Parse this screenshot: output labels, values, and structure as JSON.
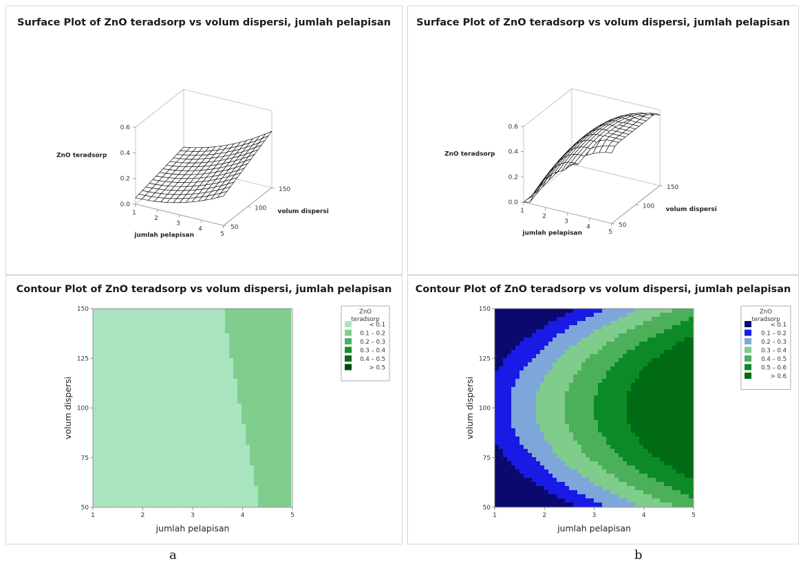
{
  "captions": [
    "a",
    "b"
  ],
  "chart_data": [
    {
      "type": "surface",
      "title": "Surface Plot of ZnO teradsorp vs volum dispersi, jumlah pelapisan",
      "xlabel": "jumlah pelapisan",
      "ylabel": "volum dispersi",
      "zlabel": "ZnO teradsorp",
      "x_ticks": [
        "1",
        "2",
        "3",
        "4",
        "5"
      ],
      "y_ticks": [
        "50",
        "100",
        "150"
      ],
      "z_ticks": [
        "0.0",
        "0.2",
        "0.4",
        "0.6"
      ],
      "xlim": [
        1,
        5
      ],
      "ylim": [
        50,
        150
      ],
      "zlim": [
        0,
        0.6
      ],
      "model": {
        "type": "quadratic",
        "b0": 0.05,
        "bx": 0.0,
        "bx2": 0.18,
        "by": 0.1,
        "by2": 0.0,
        "bxy": 0.11
      }
    },
    {
      "type": "surface",
      "title": "Surface Plot of ZnO teradsorp vs volum dispersi, jumlah pelapisan",
      "xlabel": "jumlah pelapisan",
      "ylabel": "volum dispersi",
      "zlabel": "ZnO teradsorp",
      "x_ticks": [
        "1",
        "2",
        "3",
        "4",
        "5"
      ],
      "y_ticks": [
        "50",
        "100",
        "150"
      ],
      "z_ticks": [
        "0.0",
        "0.2",
        "0.4",
        "0.6"
      ],
      "xlim": [
        1,
        5
      ],
      "ylim": [
        50,
        150
      ],
      "zlim": [
        0,
        0.6
      ],
      "model": {
        "type": "quadratic",
        "b0": 0.05,
        "bx": 1.18,
        "bx2": -0.55,
        "by": 0.0,
        "by2": -0.12,
        "bxy": 0.0
      }
    },
    {
      "type": "contour",
      "title": "Contour Plot of ZnO teradsorp vs volum dispersi, jumlah pelapisan",
      "xlabel": "jumlah pelapisan",
      "ylabel": "volum dispersi",
      "x_ticks": [
        "1",
        "2",
        "3",
        "4",
        "5"
      ],
      "y_ticks": [
        "50",
        "75",
        "100",
        "125",
        "150"
      ],
      "xlim": [
        1,
        5
      ],
      "ylim": [
        50,
        150
      ],
      "legend_title": [
        "ZnO",
        "teradsorp"
      ],
      "levels": [
        {
          "label": "<   0.1",
          "color": "#a8e5bf"
        },
        {
          "label": "0.1  –   0.2",
          "color": "#7fce8e"
        },
        {
          "label": "0.2  –   0.3",
          "color": "#4fae5e"
        },
        {
          "label": "0.3  –   0.4",
          "color": "#13902e"
        },
        {
          "label": "0.4  –   0.5",
          "color": "#006e1a"
        },
        {
          "label": ">   0.5",
          "color": "#004a12"
        }
      ],
      "thresholds": [
        0.1,
        0.2,
        0.3,
        0.4,
        0.5
      ],
      "model": {
        "type": "quadratic",
        "b0": 0.0,
        "bx": 0.0,
        "bx2": 0.14,
        "by": 0.0,
        "by2": 0.0,
        "bxy": 0.06
      }
    },
    {
      "type": "contour",
      "title": "Contour Plot of ZnO teradsorp vs volum dispersi, jumlah pelapisan",
      "xlabel": "jumlah pelapisan",
      "ylabel": "volum dispersi",
      "x_ticks": [
        "1",
        "2",
        "3",
        "4",
        "5"
      ],
      "y_ticks": [
        "50",
        "75",
        "100",
        "125",
        "150"
      ],
      "xlim": [
        1,
        5
      ],
      "ylim": [
        50,
        150
      ],
      "legend_title": [
        "ZnO",
        "teradsorp"
      ],
      "levels": [
        {
          "label": "<   0.1",
          "color": "#0a0a6e"
        },
        {
          "label": "0.1  –   0.2",
          "color": "#1a1ae6"
        },
        {
          "label": "0.2  –   0.3",
          "color": "#7fa6da"
        },
        {
          "label": "0.3  –   0.4",
          "color": "#7fcc8c"
        },
        {
          "label": "0.4  –   0.5",
          "color": "#4caf5a"
        },
        {
          "label": "0.5  –   0.6",
          "color": "#0c8a26"
        },
        {
          "label": ">   0.6",
          "color": "#006a14"
        }
      ],
      "thresholds": [
        0.1,
        0.2,
        0.3,
        0.4,
        0.5,
        0.6
      ],
      "model": {
        "type": "quadratic",
        "b0": 0.14,
        "bx": 0.8,
        "bx2": -0.16,
        "by": 0.0,
        "by2": -0.34,
        "bxy": 0.0
      }
    }
  ]
}
